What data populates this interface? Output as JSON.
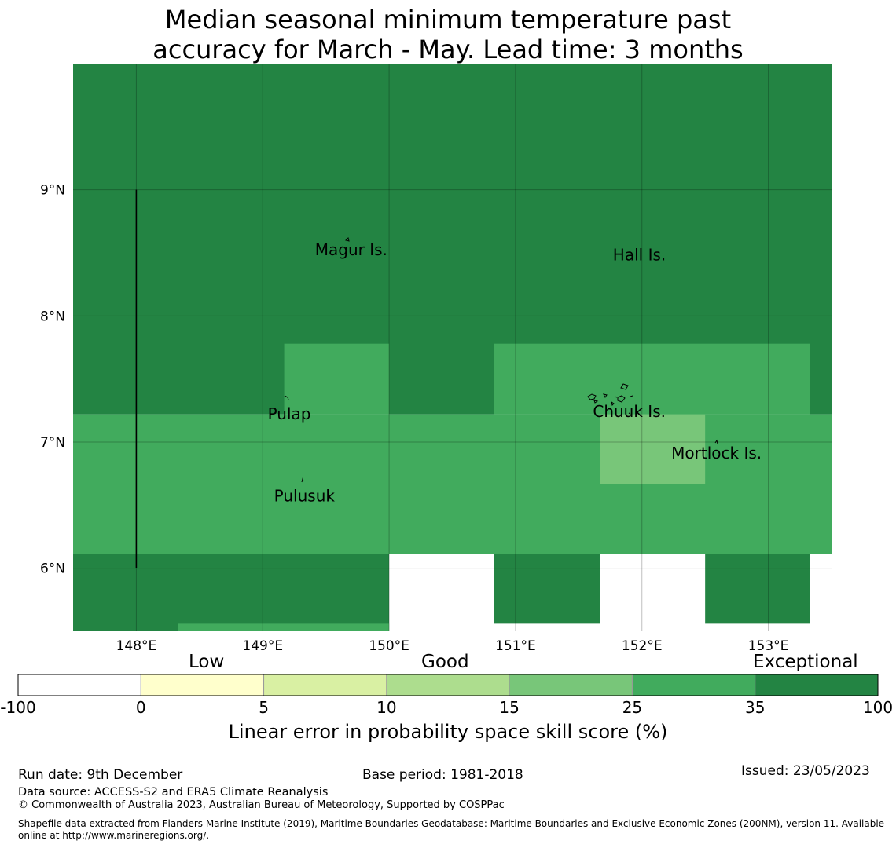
{
  "title": {
    "line1": "Median seasonal minimum temperature past",
    "line2": "accuracy for March - May. Lead time: 3 months"
  },
  "map": {
    "lon_range": [
      147.5,
      153.5
    ],
    "lat_range": [
      5.5,
      10.0
    ],
    "lon_ticks": [
      {
        "value": 148,
        "label": "148°E"
      },
      {
        "value": 149,
        "label": "149°E"
      },
      {
        "value": 150,
        "label": "150°E"
      },
      {
        "value": 151,
        "label": "151°E"
      },
      {
        "value": 152,
        "label": "152°E"
      },
      {
        "value": 153,
        "label": "153°E"
      }
    ],
    "lat_ticks": [
      {
        "value": 9,
        "label": "9°N"
      },
      {
        "value": 8,
        "label": "8°N"
      },
      {
        "value": 7,
        "label": "7°N"
      },
      {
        "value": 6,
        "label": "6°N"
      }
    ],
    "grid": true,
    "skill_cells": [
      {
        "lon": [
          147.5,
          153.5
        ],
        "lat": [
          7.22,
          10.0
        ],
        "category": "exceptional"
      },
      {
        "lon": [
          147.5,
          153.5
        ],
        "lat": [
          6.11,
          7.22
        ],
        "category": "very_good"
      },
      {
        "lon": [
          149.17,
          150.0
        ],
        "lat": [
          7.22,
          7.78
        ],
        "category": "very_good"
      },
      {
        "lon": [
          150.83,
          153.33
        ],
        "lat": [
          7.22,
          7.78
        ],
        "category": "very_good"
      },
      {
        "lon": [
          151.67,
          152.5
        ],
        "lat": [
          6.67,
          7.22
        ],
        "category": "good"
      },
      {
        "lon": [
          147.5,
          150.0
        ],
        "lat": [
          5.5,
          6.11
        ],
        "category": "exceptional"
      },
      {
        "lon": [
          150.83,
          151.67
        ],
        "lat": [
          5.56,
          6.11
        ],
        "category": "exceptional"
      },
      {
        "lon": [
          152.5,
          153.33
        ],
        "lat": [
          5.56,
          6.11
        ],
        "category": "exceptional"
      },
      {
        "lon": [
          148.33,
          150.0
        ],
        "lat": [
          5.5,
          5.56
        ],
        "category": "very_good"
      }
    ],
    "boundary_line": {
      "lon": 148.0,
      "lat": [
        6.0,
        9.0
      ]
    },
    "places": [
      {
        "name": "Magur Is.",
        "lon": 149.7,
        "lat": 8.53
      },
      {
        "name": "Hall Is.",
        "lon": 151.98,
        "lat": 8.49
      },
      {
        "name": "Pulap",
        "lon": 149.21,
        "lat": 7.23
      },
      {
        "name": "Chuuk Is.",
        "lon": 151.9,
        "lat": 7.25
      },
      {
        "name": "Mortlock Is.",
        "lon": 152.59,
        "lat": 6.92
      },
      {
        "name": "Pulusuk",
        "lon": 149.33,
        "lat": 6.58
      }
    ]
  },
  "colorbar": {
    "categories": [
      {
        "label": "Low",
        "position": 0.2
      },
      {
        "label": "Good",
        "position": 0.5
      },
      {
        "label": "Exceptional",
        "position": 0.915
      }
    ],
    "bins": [
      {
        "color": "#ffffff"
      },
      {
        "color": "#ffffcc"
      },
      {
        "color": "#d9f0a3"
      },
      {
        "color": "#addd8e"
      },
      {
        "color": "#78c679"
      },
      {
        "color": "#41ab5d"
      },
      {
        "color": "#238443"
      }
    ],
    "tick_labels": [
      "-100",
      "0",
      "5",
      "10",
      "15",
      "25",
      "35",
      "100"
    ],
    "title": "Linear error in probability space skill score (%)"
  },
  "colors": {
    "exceptional": "#238443",
    "very_good": "#41ab5d",
    "good": "#78c679"
  },
  "footer": {
    "run_date": "Run date: 9th December",
    "base_period": "Base period: 1981-2018",
    "issued": "Issued: 23/05/2023",
    "data_source": "Data source: ACCESS-S2 and ERA5 Climate Reanalysis",
    "copyright": "© Commonwealth of Australia 2023, Australian Bureau of Meteorology, Supported by COSPPac",
    "shapefile_line1": "Shapefile data extracted from Flanders Marine Institute (2019), Maritime Boundaries Geodatabase: Maritime Boundaries and Exclusive Economic Zones (200NM), version 11. Available",
    "shapefile_line2": "online at http://www.marineregions.org/."
  }
}
